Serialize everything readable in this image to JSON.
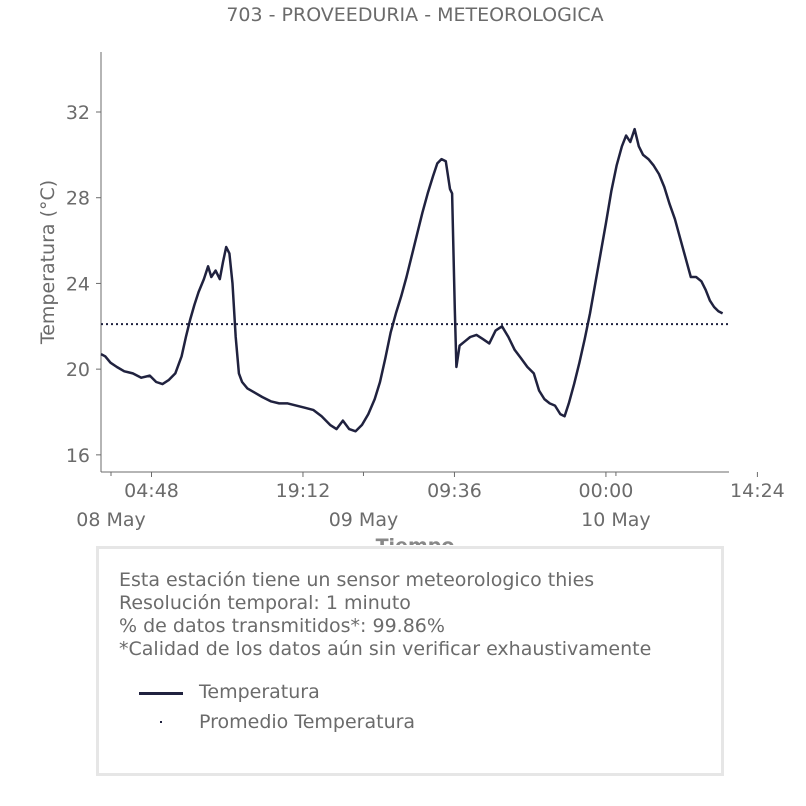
{
  "chart_data": {
    "type": "line",
    "title": "703 - PROVEEDURIA - METEOROLOGICA",
    "xlabel": "Tiempo",
    "ylabel": "Temperatura (°C)",
    "ylim": [
      15.2,
      34.8
    ],
    "y_ticks": [
      16,
      20,
      24,
      28,
      32
    ],
    "xlim": [
      0.0,
      59.7
    ],
    "x_units": "hours since 2024-05-08 00:00 (date not printed; axis labels only show day/month)",
    "x_ticks": [
      {
        "x": 4.8,
        "label": "04:48",
        "sub": "08 May"
      },
      {
        "x": 19.2,
        "label": "19:12",
        "sub": ""
      },
      {
        "x": 33.6,
        "label": "09:36",
        "sub": ""
      },
      {
        "x": 48.0,
        "label": "00:00",
        "sub": ""
      },
      {
        "x": 62.4,
        "label": "14:24",
        "sub": ""
      }
    ],
    "date_labels": [
      "08 May",
      "09 May",
      "10 May"
    ],
    "grid": false,
    "series": [
      {
        "name": "Temperatura",
        "color": "#20223f",
        "style": "solid",
        "points": [
          [
            0.0,
            20.7
          ],
          [
            0.4,
            20.6
          ],
          [
            0.9,
            20.3
          ],
          [
            1.5,
            20.1
          ],
          [
            2.2,
            19.9
          ],
          [
            3.0,
            19.8
          ],
          [
            3.8,
            19.6
          ],
          [
            4.6,
            19.7
          ],
          [
            5.2,
            19.4
          ],
          [
            5.8,
            19.3
          ],
          [
            6.4,
            19.5
          ],
          [
            7.0,
            19.8
          ],
          [
            7.6,
            20.6
          ],
          [
            8.0,
            21.5
          ],
          [
            8.4,
            22.3
          ],
          [
            8.8,
            23.0
          ],
          [
            9.2,
            23.6
          ],
          [
            9.7,
            24.2
          ],
          [
            10.1,
            24.8
          ],
          [
            10.4,
            24.3
          ],
          [
            10.8,
            24.6
          ],
          [
            11.2,
            24.2
          ],
          [
            11.5,
            25.0
          ],
          [
            11.8,
            25.7
          ],
          [
            12.1,
            25.4
          ],
          [
            12.4,
            24.0
          ],
          [
            12.7,
            21.5
          ],
          [
            13.0,
            19.8
          ],
          [
            13.3,
            19.4
          ],
          [
            13.8,
            19.1
          ],
          [
            14.5,
            18.9
          ],
          [
            15.2,
            18.7
          ],
          [
            16.0,
            18.5
          ],
          [
            16.8,
            18.4
          ],
          [
            17.6,
            18.4
          ],
          [
            18.4,
            18.3
          ],
          [
            19.2,
            18.2
          ],
          [
            20.0,
            18.1
          ],
          [
            20.8,
            17.8
          ],
          [
            21.6,
            17.4
          ],
          [
            22.2,
            17.2
          ],
          [
            22.8,
            17.6
          ],
          [
            23.4,
            17.2
          ],
          [
            24.0,
            17.1
          ],
          [
            24.6,
            17.4
          ],
          [
            25.2,
            17.9
          ],
          [
            25.8,
            18.6
          ],
          [
            26.3,
            19.4
          ],
          [
            26.8,
            20.5
          ],
          [
            27.3,
            21.7
          ],
          [
            27.8,
            22.6
          ],
          [
            28.3,
            23.4
          ],
          [
            28.8,
            24.3
          ],
          [
            29.3,
            25.3
          ],
          [
            29.8,
            26.3
          ],
          [
            30.3,
            27.3
          ],
          [
            30.8,
            28.2
          ],
          [
            31.3,
            29.0
          ],
          [
            31.7,
            29.6
          ],
          [
            32.1,
            29.8
          ],
          [
            32.5,
            29.7
          ],
          [
            32.9,
            28.4
          ],
          [
            33.1,
            28.2
          ],
          [
            33.35,
            22.8
          ],
          [
            33.5,
            20.1
          ],
          [
            33.8,
            21.1
          ],
          [
            34.3,
            21.3
          ],
          [
            34.8,
            21.5
          ],
          [
            35.4,
            21.6
          ],
          [
            36.0,
            21.4
          ],
          [
            36.6,
            21.2
          ],
          [
            37.2,
            21.8
          ],
          [
            37.8,
            22.0
          ],
          [
            38.4,
            21.5
          ],
          [
            39.0,
            20.9
          ],
          [
            39.6,
            20.5
          ],
          [
            40.2,
            20.1
          ],
          [
            40.8,
            19.8
          ],
          [
            41.3,
            19.0
          ],
          [
            41.8,
            18.6
          ],
          [
            42.3,
            18.4
          ],
          [
            42.8,
            18.3
          ],
          [
            43.3,
            17.9
          ],
          [
            43.7,
            17.8
          ],
          [
            44.1,
            18.4
          ],
          [
            44.6,
            19.3
          ],
          [
            45.1,
            20.3
          ],
          [
            45.6,
            21.4
          ],
          [
            46.1,
            22.6
          ],
          [
            46.6,
            24.0
          ],
          [
            47.1,
            25.4
          ],
          [
            47.6,
            26.8
          ],
          [
            48.1,
            28.3
          ],
          [
            48.6,
            29.5
          ],
          [
            49.1,
            30.4
          ],
          [
            49.5,
            30.9
          ],
          [
            49.9,
            30.6
          ],
          [
            50.3,
            31.2
          ],
          [
            50.7,
            30.4
          ],
          [
            51.1,
            30.0
          ],
          [
            51.6,
            29.8
          ],
          [
            52.1,
            29.5
          ],
          [
            52.6,
            29.1
          ],
          [
            53.1,
            28.5
          ],
          [
            53.6,
            27.7
          ],
          [
            54.1,
            27.0
          ],
          [
            54.6,
            26.1
          ],
          [
            55.1,
            25.2
          ],
          [
            55.6,
            24.3
          ],
          [
            56.1,
            24.3
          ],
          [
            56.6,
            24.1
          ],
          [
            57.0,
            23.7
          ],
          [
            57.4,
            23.2
          ],
          [
            57.8,
            22.9
          ],
          [
            58.2,
            22.7
          ],
          [
            58.6,
            22.6
          ]
        ]
      },
      {
        "name": "Promedio Temperatura",
        "color": "#20223f",
        "style": "dotted",
        "value": 22.1
      }
    ],
    "legend_placement": "bottom"
  },
  "info": {
    "lines": [
      "Esta estación tiene un sensor meteorologico thies",
      "Resolución temporal: 1 minuto",
      "% de datos transmitidos*: 99.86%",
      "*Calidad de los datos aún sin verificar exhaustivamente"
    ]
  },
  "legend": {
    "items": [
      {
        "label": "Temperatura"
      },
      {
        "label": "Promedio Temperatura"
      }
    ]
  }
}
